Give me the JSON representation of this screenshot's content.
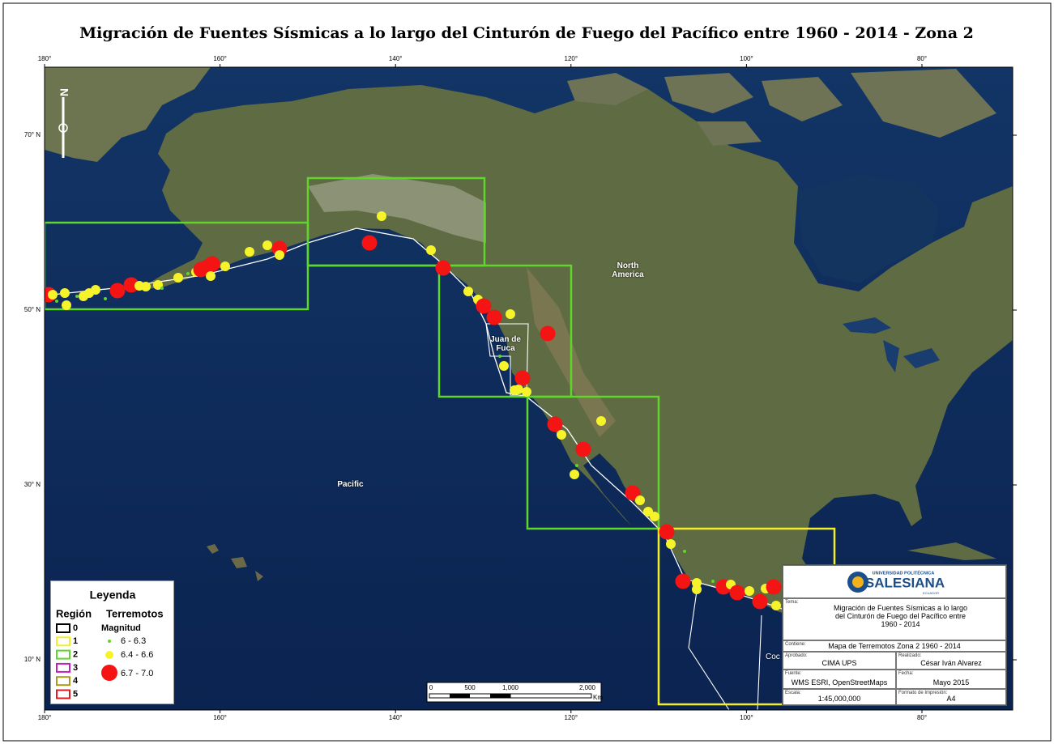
{
  "title": "Migración de Fuentes Sísmicas a lo largo del Cinturón de Fuego del Pacífico entre 1960 - 2014 - Zona 2",
  "map": {
    "longitude_labels": [
      "180°",
      "160°",
      "140°",
      "120°",
      "100°",
      "80°"
    ],
    "latitude_labels": [
      "70° N",
      "50° N",
      "30° N",
      "10° N"
    ],
    "north_label": "N",
    "place_labels": {
      "north_america": "North America",
      "juan_de_fuca": "Juan de Fuca",
      "pacific": "Pacific",
      "cocos": "Coc"
    }
  },
  "legend": {
    "title": "Leyenda",
    "region_header": "Región",
    "quake_header": "Terremotos",
    "regions": [
      "0",
      "1",
      "2",
      "3",
      "4",
      "5"
    ],
    "magnitude_title": "Magnitud",
    "magnitudes": [
      "6 - 6.3",
      "6.4 - 6.6",
      "6.7 - 7.0"
    ]
  },
  "scale_bar": {
    "labels": [
      "0",
      "500",
      "1,000",
      "2,000"
    ],
    "unit": "Km"
  },
  "title_block": {
    "logo_top": "UNIVERSIDAD POLITÉCNICA",
    "logo_name": "SALESIANA",
    "logo_bottom": "ECUADOR",
    "theme_label": "Tema:",
    "theme": "Migración de Fuentes Sísmicas a lo largo del Cinturón de Fuego del Pacífico entre 1960 - 2014",
    "contains_label": "Contiene:",
    "contains": "Mapa de Terremotos Zona 2 1960 - 2014",
    "approved_label": "Aprobado:",
    "approved": "CIMA UPS",
    "made_label": "Realizado:",
    "made": "César Iván Alvarez",
    "source_label": "Fuente:",
    "source": "WMS ESRI, OpenStreetMaps",
    "date_label": "Fecha:",
    "date": "Mayo 2015",
    "scale_label": "Escala:",
    "scale": "1:45,000,000",
    "format_label": "Formato de Impresión:",
    "format": "A4"
  }
}
